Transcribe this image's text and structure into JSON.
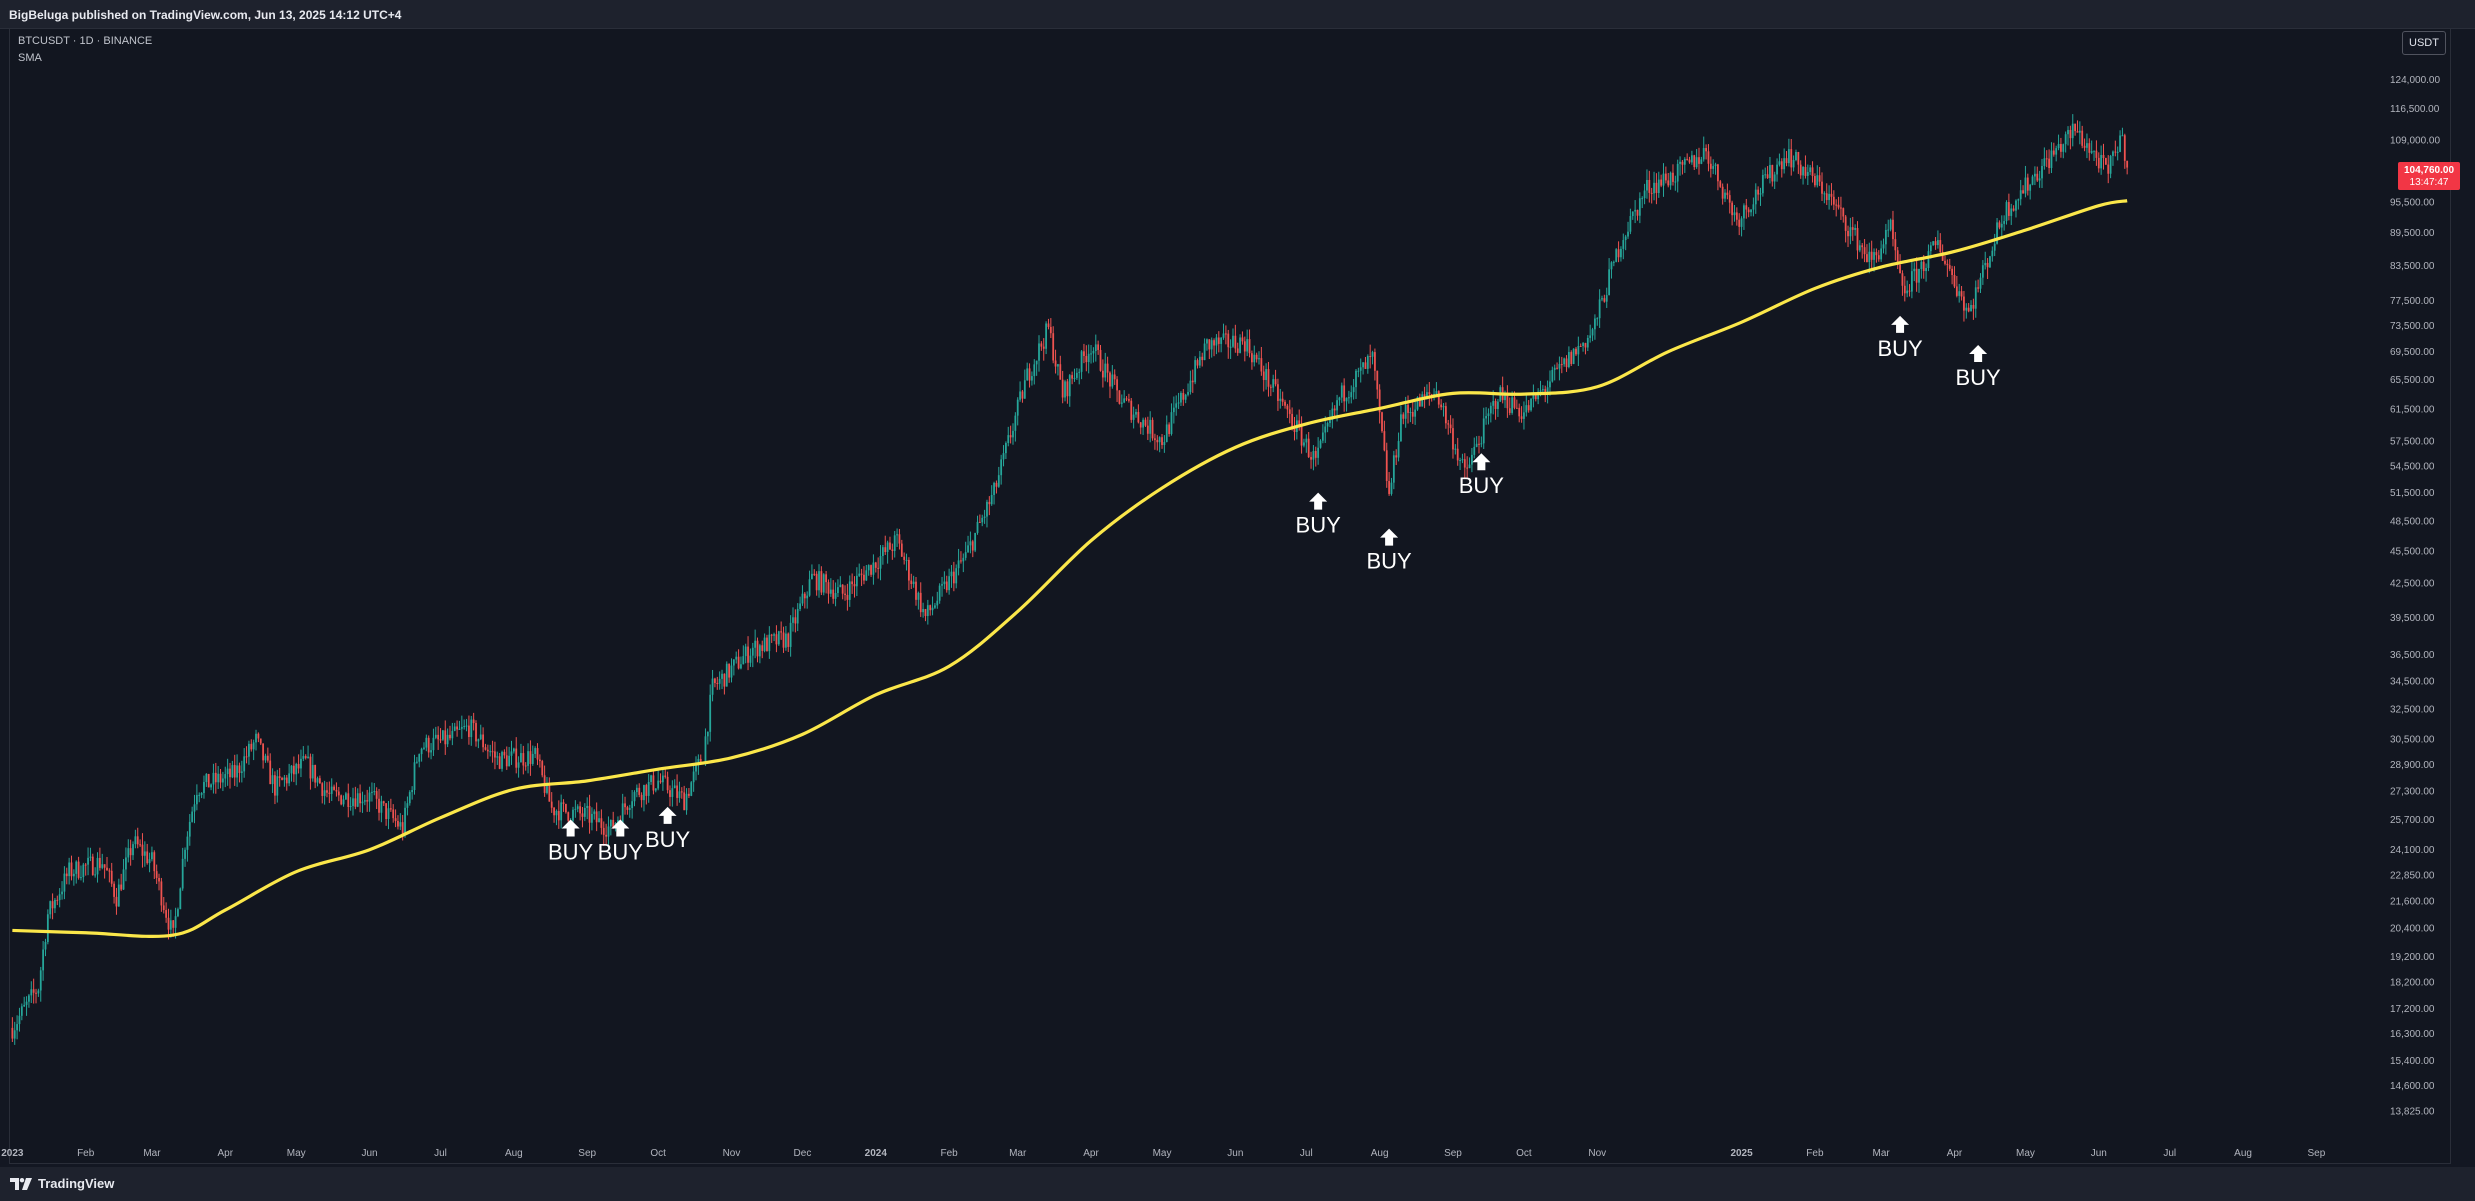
{
  "header": {
    "publisher_line": "BigBeluga published on TradingView.com, Jun 13, 2025 14:12 UTC+4"
  },
  "legend": {
    "symbol": "BTCUSDT · 1D · BINANCE",
    "indicator": "SMA"
  },
  "toolbar": {
    "currency": "USDT"
  },
  "price_badge": {
    "price": "104,760.00",
    "countdown": "13:47:47"
  },
  "footer": {
    "brand": "TradingView"
  },
  "colors": {
    "background": "#131722",
    "up": "#26a69a",
    "down": "#ef5350",
    "sma": "#fbe74a",
    "badge": "#f23645",
    "signal": "#ffffff"
  },
  "icons": {
    "signal": "up-arrow-icon",
    "brand": "tradingview-logo-icon"
  },
  "chart_data": {
    "type": "candlestick",
    "y_scale": "log",
    "ylim": [
      13000,
      132000
    ],
    "y_ticks": [
      "124,000.00",
      "116,500.00",
      "109,000.00",
      "95,500.00",
      "89,500.00",
      "83,500.00",
      "77,500.00",
      "73,500.00",
      "69,500.00",
      "65,500.00",
      "61,500.00",
      "57,500.00",
      "54,500.00",
      "51,500.00",
      "48,500.00",
      "45,500.00",
      "42,500.00",
      "39,500.00",
      "36,500.00",
      "34,500.00",
      "32,500.00",
      "30,500.00",
      "28,900.00",
      "27,300.00",
      "25,700.00",
      "24,100.00",
      "22,850.00",
      "21,600.00",
      "20,400.00",
      "19,200.00",
      "18,200.00",
      "17,200.00",
      "16,300.00",
      "15,400.00",
      "14,600.00",
      "13,825.00"
    ],
    "x_range": [
      "2022-12-31",
      "2025-09-30"
    ],
    "x_ticks": [
      {
        "label": "2023",
        "date": "2023-01-01"
      },
      {
        "label": "Feb",
        "date": "2023-02-01"
      },
      {
        "label": "Mar",
        "date": "2023-03-01"
      },
      {
        "label": "Apr",
        "date": "2023-04-01"
      },
      {
        "label": "May",
        "date": "2023-05-01"
      },
      {
        "label": "Jun",
        "date": "2023-06-01"
      },
      {
        "label": "Jul",
        "date": "2023-07-01"
      },
      {
        "label": "Aug",
        "date": "2023-08-01"
      },
      {
        "label": "Sep",
        "date": "2023-09-01"
      },
      {
        "label": "Oct",
        "date": "2023-10-01"
      },
      {
        "label": "Nov",
        "date": "2023-11-01"
      },
      {
        "label": "Dec",
        "date": "2023-12-01"
      },
      {
        "label": "2024",
        "date": "2024-01-01"
      },
      {
        "label": "Feb",
        "date": "2024-02-01"
      },
      {
        "label": "Mar",
        "date": "2024-03-01"
      },
      {
        "label": "Apr",
        "date": "2024-04-01"
      },
      {
        "label": "May",
        "date": "2024-05-01"
      },
      {
        "label": "Jun",
        "date": "2024-06-01"
      },
      {
        "label": "Jul",
        "date": "2024-07-01"
      },
      {
        "label": "Aug",
        "date": "2024-08-01"
      },
      {
        "label": "Sep",
        "date": "2024-09-01"
      },
      {
        "label": "Oct",
        "date": "2024-10-01"
      },
      {
        "label": "Nov",
        "date": "2024-11-01"
      },
      {
        "label": "2025",
        "date": "2025-01-01"
      },
      {
        "label": "Feb",
        "date": "2025-02-01"
      },
      {
        "label": "Mar",
        "date": "2025-03-01"
      },
      {
        "label": "Apr",
        "date": "2025-04-01"
      },
      {
        "label": "May",
        "date": "2025-05-01"
      },
      {
        "label": "Jun",
        "date": "2025-06-01"
      },
      {
        "label": "Jul",
        "date": "2025-07-01"
      },
      {
        "label": "Aug",
        "date": "2025-08-01"
      },
      {
        "label": "Sep",
        "date": "2025-09-01"
      }
    ],
    "price_path": [
      [
        "2023-01-01",
        16500
      ],
      [
        "2023-01-12",
        18000
      ],
      [
        "2023-01-16",
        21000
      ],
      [
        "2023-01-25",
        23000
      ],
      [
        "2023-02-08",
        23500
      ],
      [
        "2023-02-14",
        21800
      ],
      [
        "2023-02-21",
        24500
      ],
      [
        "2023-03-01",
        23500
      ],
      [
        "2023-03-10",
        20000
      ],
      [
        "2023-03-15",
        24500
      ],
      [
        "2023-03-20",
        27500
      ],
      [
        "2023-04-05",
        28300
      ],
      [
        "2023-04-14",
        30400
      ],
      [
        "2023-04-22",
        27500
      ],
      [
        "2023-05-05",
        29000
      ],
      [
        "2023-05-15",
        27000
      ],
      [
        "2023-06-01",
        27000
      ],
      [
        "2023-06-15",
        25200
      ],
      [
        "2023-06-22",
        30000
      ],
      [
        "2023-07-05",
        30500
      ],
      [
        "2023-07-13",
        31300
      ],
      [
        "2023-07-25",
        29200
      ],
      [
        "2023-08-10",
        29400
      ],
      [
        "2023-08-17",
        26300
      ],
      [
        "2023-09-01",
        25900
      ],
      [
        "2023-09-11",
        25200
      ],
      [
        "2023-09-20",
        27100
      ],
      [
        "2023-10-01",
        27900
      ],
      [
        "2023-10-12",
        26800
      ],
      [
        "2023-10-20",
        29500
      ],
      [
        "2023-10-24",
        34000
      ],
      [
        "2023-11-10",
        37000
      ],
      [
        "2023-11-25",
        37800
      ],
      [
        "2023-12-05",
        43000
      ],
      [
        "2023-12-18",
        41500
      ],
      [
        "2024-01-10",
        46500
      ],
      [
        "2024-01-22",
        39500
      ],
      [
        "2024-02-08",
        45000
      ],
      [
        "2024-02-20",
        51500
      ],
      [
        "2024-03-05",
        66000
      ],
      [
        "2024-03-14",
        73000
      ],
      [
        "2024-03-20",
        63500
      ],
      [
        "2024-04-01",
        70500
      ],
      [
        "2024-04-13",
        63000
      ],
      [
        "2024-05-01",
        57500
      ],
      [
        "2024-05-20",
        70500
      ],
      [
        "2024-06-05",
        71000
      ],
      [
        "2024-06-24",
        60500
      ],
      [
        "2024-07-05",
        55000
      ],
      [
        "2024-07-15",
        63000
      ],
      [
        "2024-07-29",
        68500
      ],
      [
        "2024-08-05",
        51000
      ],
      [
        "2024-08-10",
        60500
      ],
      [
        "2024-08-25",
        64000
      ],
      [
        "2024-09-06",
        53500
      ],
      [
        "2024-09-20",
        63500
      ],
      [
        "2024-10-01",
        61000
      ],
      [
        "2024-10-14",
        66000
      ],
      [
        "2024-10-30",
        72500
      ],
      [
        "2024-11-11",
        88000
      ],
      [
        "2024-11-22",
        98500
      ],
      [
        "2024-12-05",
        101500
      ],
      [
        "2024-12-17",
        106500
      ],
      [
        "2024-12-30",
        92000
      ],
      [
        "2025-01-20",
        106000
      ],
      [
        "2025-02-05",
        98000
      ],
      [
        "2025-02-25",
        84000
      ],
      [
        "2025-03-05",
        90000
      ],
      [
        "2025-03-10",
        78500
      ],
      [
        "2025-03-25",
        87500
      ],
      [
        "2025-04-07",
        75500
      ],
      [
        "2025-04-22",
        93500
      ],
      [
        "2025-05-08",
        103000
      ],
      [
        "2025-05-22",
        111500
      ],
      [
        "2025-06-05",
        101500
      ],
      [
        "2025-06-10",
        110000
      ],
      [
        "2025-06-13",
        104760
      ]
    ],
    "sma_path": [
      [
        "2023-01-01",
        20300
      ],
      [
        "2023-02-01",
        20200
      ],
      [
        "2023-03-10",
        20100
      ],
      [
        "2023-04-01",
        21200
      ],
      [
        "2023-05-01",
        23000
      ],
      [
        "2023-06-01",
        24100
      ],
      [
        "2023-07-01",
        25800
      ],
      [
        "2023-08-01",
        27400
      ],
      [
        "2023-09-01",
        27900
      ],
      [
        "2023-10-01",
        28600
      ],
      [
        "2023-11-01",
        29300
      ],
      [
        "2023-12-01",
        30800
      ],
      [
        "2024-01-01",
        33500
      ],
      [
        "2024-02-01",
        35600
      ],
      [
        "2024-03-01",
        40000
      ],
      [
        "2024-04-01",
        46500
      ],
      [
        "2024-05-01",
        52000
      ],
      [
        "2024-06-01",
        56700
      ],
      [
        "2024-07-01",
        59600
      ],
      [
        "2024-08-01",
        61600
      ],
      [
        "2024-09-01",
        63600
      ],
      [
        "2024-10-01",
        63500
      ],
      [
        "2024-11-01",
        64500
      ],
      [
        "2024-12-01",
        69500
      ],
      [
        "2025-01-01",
        74000
      ],
      [
        "2025-02-01",
        79500
      ],
      [
        "2025-03-01",
        83200
      ],
      [
        "2025-04-01",
        86000
      ],
      [
        "2025-05-01",
        90000
      ],
      [
        "2025-06-01",
        94800
      ],
      [
        "2025-06-13",
        95800
      ]
    ],
    "signals": [
      {
        "label": "BUY",
        "date": "2023-08-25",
        "price": 25700
      },
      {
        "label": "BUY",
        "date": "2023-09-15",
        "price": 25700
      },
      {
        "label": "BUY",
        "date": "2023-10-05",
        "price": 26400
      },
      {
        "label": "BUY",
        "date": "2024-07-06",
        "price": 51500
      },
      {
        "label": "BUY",
        "date": "2024-08-05",
        "price": 47700
      },
      {
        "label": "BUY",
        "date": "2024-09-13",
        "price": 56000
      },
      {
        "label": "BUY",
        "date": "2025-03-09",
        "price": 75000
      },
      {
        "label": "BUY",
        "date": "2025-04-11",
        "price": 70500
      }
    ]
  }
}
